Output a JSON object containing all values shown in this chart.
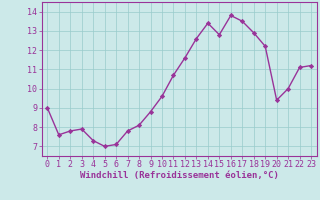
{
  "x": [
    0,
    1,
    2,
    3,
    4,
    5,
    6,
    7,
    8,
    9,
    10,
    11,
    12,
    13,
    14,
    15,
    16,
    17,
    18,
    19,
    20,
    21,
    22,
    23
  ],
  "y": [
    9.0,
    7.6,
    7.8,
    7.9,
    7.3,
    7.0,
    7.1,
    7.8,
    8.1,
    8.8,
    9.6,
    10.7,
    11.6,
    12.6,
    13.4,
    12.8,
    13.8,
    13.5,
    12.9,
    12.2,
    9.4,
    10.0,
    11.1,
    11.2
  ],
  "line_color": "#993399",
  "marker": "D",
  "marker_size": 2.2,
  "linewidth": 1.0,
  "xlabel": "Windchill (Refroidissement éolien,°C)",
  "xlabel_fontsize": 6.5,
  "yticks": [
    7,
    8,
    9,
    10,
    11,
    12,
    13,
    14
  ],
  "xlim": [
    -0.5,
    23.5
  ],
  "ylim": [
    6.5,
    14.5
  ],
  "background_color": "#cce9e9",
  "grid_color": "#99cccc",
  "tick_fontsize": 6.0
}
